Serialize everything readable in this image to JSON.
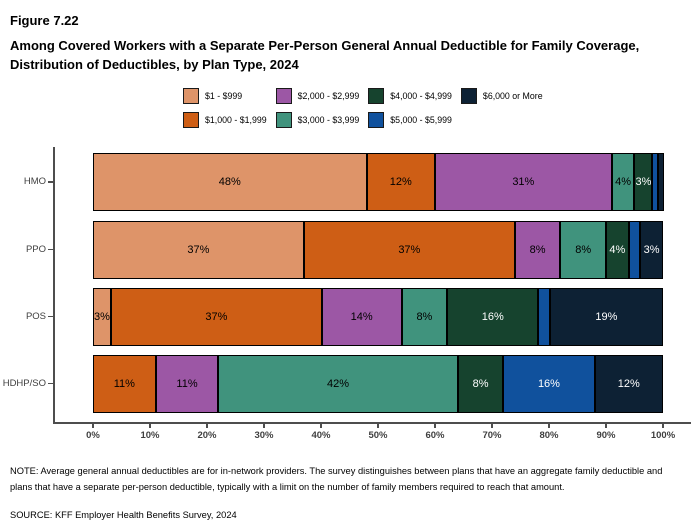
{
  "header": {
    "figure_label": "Figure 7.22",
    "title": "Among Covered Workers with a Separate Per-Person General Annual Deductible for Family Coverage, Distribution of Deductibles, by Plan Type, 2024"
  },
  "chart_data": {
    "type": "bar",
    "orientation": "horizontal-stacked",
    "title": "Among Covered Workers with a Separate Per-Person General Annual Deductible for Family Coverage, Distribution of Deductibles, by Plan Type, 2024",
    "categories": [
      "HMO",
      "PPO",
      "POS",
      "HDHP/SO"
    ],
    "series": [
      {
        "name": "$1 - $999",
        "color": "#DE9469",
        "text_color": "#000000",
        "values": [
          48,
          37,
          3,
          0
        ]
      },
      {
        "name": "$1,000 - $1,999",
        "color": "#CE5E15",
        "text_color": "#000000",
        "values": [
          12,
          37,
          37,
          11
        ]
      },
      {
        "name": "$2,000 - $2,999",
        "color": "#9C57A5",
        "text_color": "#000000",
        "values": [
          31,
          8,
          14,
          11
        ]
      },
      {
        "name": "$3,000 - $3,999",
        "color": "#40937D",
        "text_color": "#000000",
        "values": [
          4,
          8,
          8,
          42
        ]
      },
      {
        "name": "$4,000 - $4,999",
        "color": "#16432E",
        "text_color": "#ffffff",
        "values": [
          3,
          4,
          16,
          8
        ]
      },
      {
        "name": "$5,000 - $5,999",
        "color": "#10519D",
        "text_color": "#ffffff",
        "values": [
          1,
          2,
          2,
          16
        ]
      },
      {
        "name": "$6,000 or More",
        "color": "#0D2134",
        "text_color": "#ffffff",
        "values": [
          1,
          3,
          19,
          12
        ]
      }
    ],
    "value_suffix": "%",
    "label_min_value": 3,
    "x_tick_labels": [
      "0%",
      "10%",
      "20%",
      "30%",
      "40%",
      "50%",
      "60%",
      "70%",
      "80%",
      "90%",
      "100%"
    ],
    "xlim": [
      0,
      100
    ],
    "grid": false,
    "legend_position": "top"
  },
  "footer": {
    "note": "NOTE: Average general annual deductibles are for in-network providers. The survey distinguishes between plans that have an aggregate family deductible and plans that have a separate per-person deductible, typically with a limit on the number of family members required to reach that amount.",
    "source": "SOURCE: KFF Employer Health Benefits Survey, 2024"
  }
}
